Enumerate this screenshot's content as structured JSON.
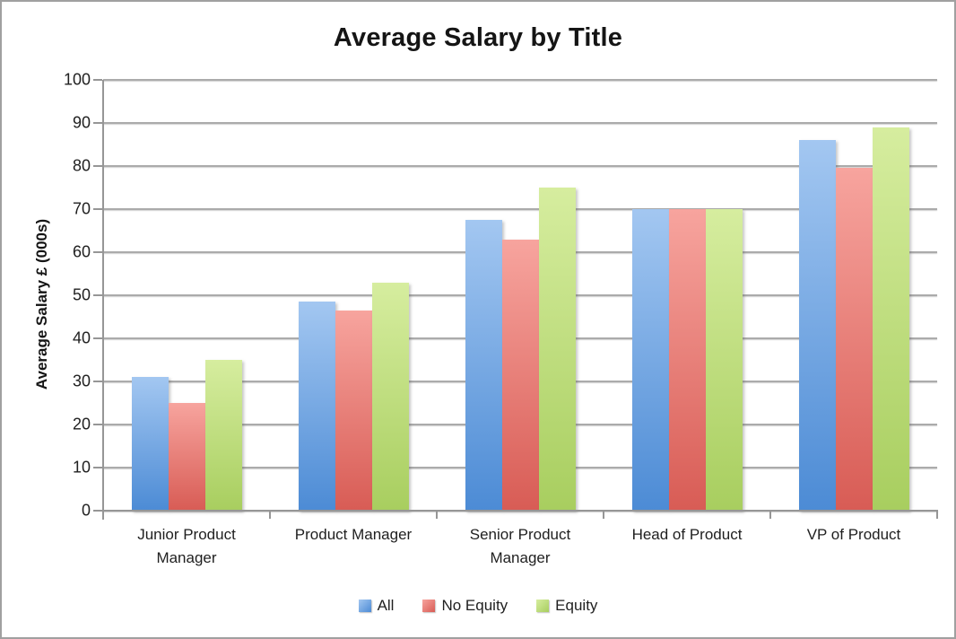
{
  "window": {
    "background": "#FFFFFF",
    "border_color": "#A0A0A0"
  },
  "chart_data": {
    "type": "bar",
    "title": "Average Salary by Title",
    "xlabel": "",
    "ylabel": "Average Salary £ (000s)",
    "categories": [
      "Junior Product Manager",
      "Product Manager",
      "Senior Product Manager",
      "Head of Product",
      "VP of Product"
    ],
    "series": [
      {
        "name": "All",
        "values": [
          31,
          48.5,
          67.5,
          70,
          86
        ],
        "color_top": "#A3C7F1",
        "color_bottom": "#4C8BD5"
      },
      {
        "name": "No Equity",
        "values": [
          25,
          46.5,
          63,
          70,
          79.5
        ],
        "color_top": "#F7A49E",
        "color_bottom": "#D85C55"
      },
      {
        "name": "Equity",
        "values": [
          35,
          53,
          75,
          70,
          89
        ],
        "color_top": "#D6ED9F",
        "color_bottom": "#A8CE5F"
      }
    ],
    "ylim": [
      0,
      100
    ],
    "ytick_step": 10,
    "grid": true,
    "legend_position": "bottom",
    "gridline_color": "#ABABAB",
    "axis_color": "#969696",
    "text_color": "#1f1f1f"
  }
}
